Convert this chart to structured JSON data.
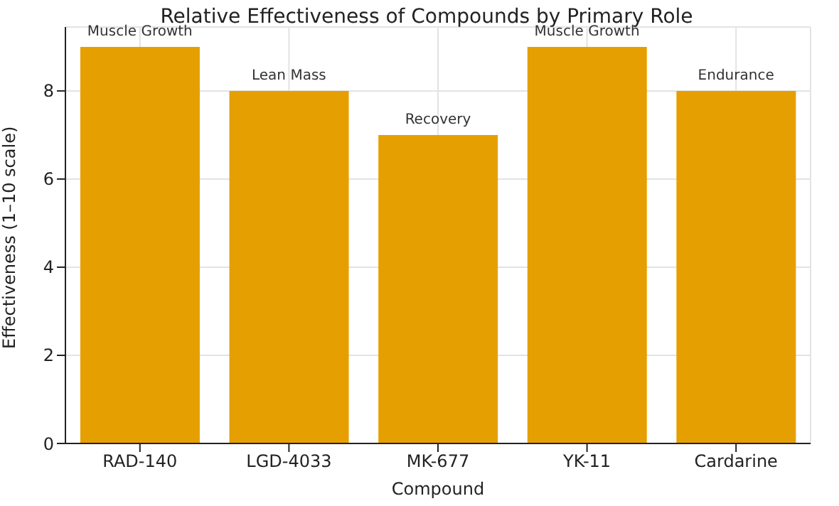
{
  "chart_data": {
    "type": "bar",
    "title": "Relative Effectiveness of Compounds by Primary Role",
    "xlabel": "Compound",
    "ylabel": "Effectiveness (1–10 scale)",
    "categories": [
      "RAD-140",
      "LGD-4033",
      "MK-677",
      "YK-11",
      "Cardarine"
    ],
    "values": [
      9,
      8,
      7,
      9,
      8
    ],
    "color": "#e69f00",
    "ylim": [
      0,
      9.45
    ],
    "yticks": [
      0,
      2,
      4,
      6,
      8
    ],
    "grid": true,
    "annotations": [
      {
        "text": "Muscle Growth",
        "x": "RAD-140",
        "y": 9
      },
      {
        "text": "Lean Mass",
        "x": "LGD-4033",
        "y": 8
      },
      {
        "text": "Recovery",
        "x": "MK-677",
        "y": 7
      },
      {
        "text": "Muscle Growth",
        "x": "YK-11",
        "y": 9
      },
      {
        "text": "Endurance",
        "x": "Cardarine",
        "y": 8
      }
    ]
  }
}
